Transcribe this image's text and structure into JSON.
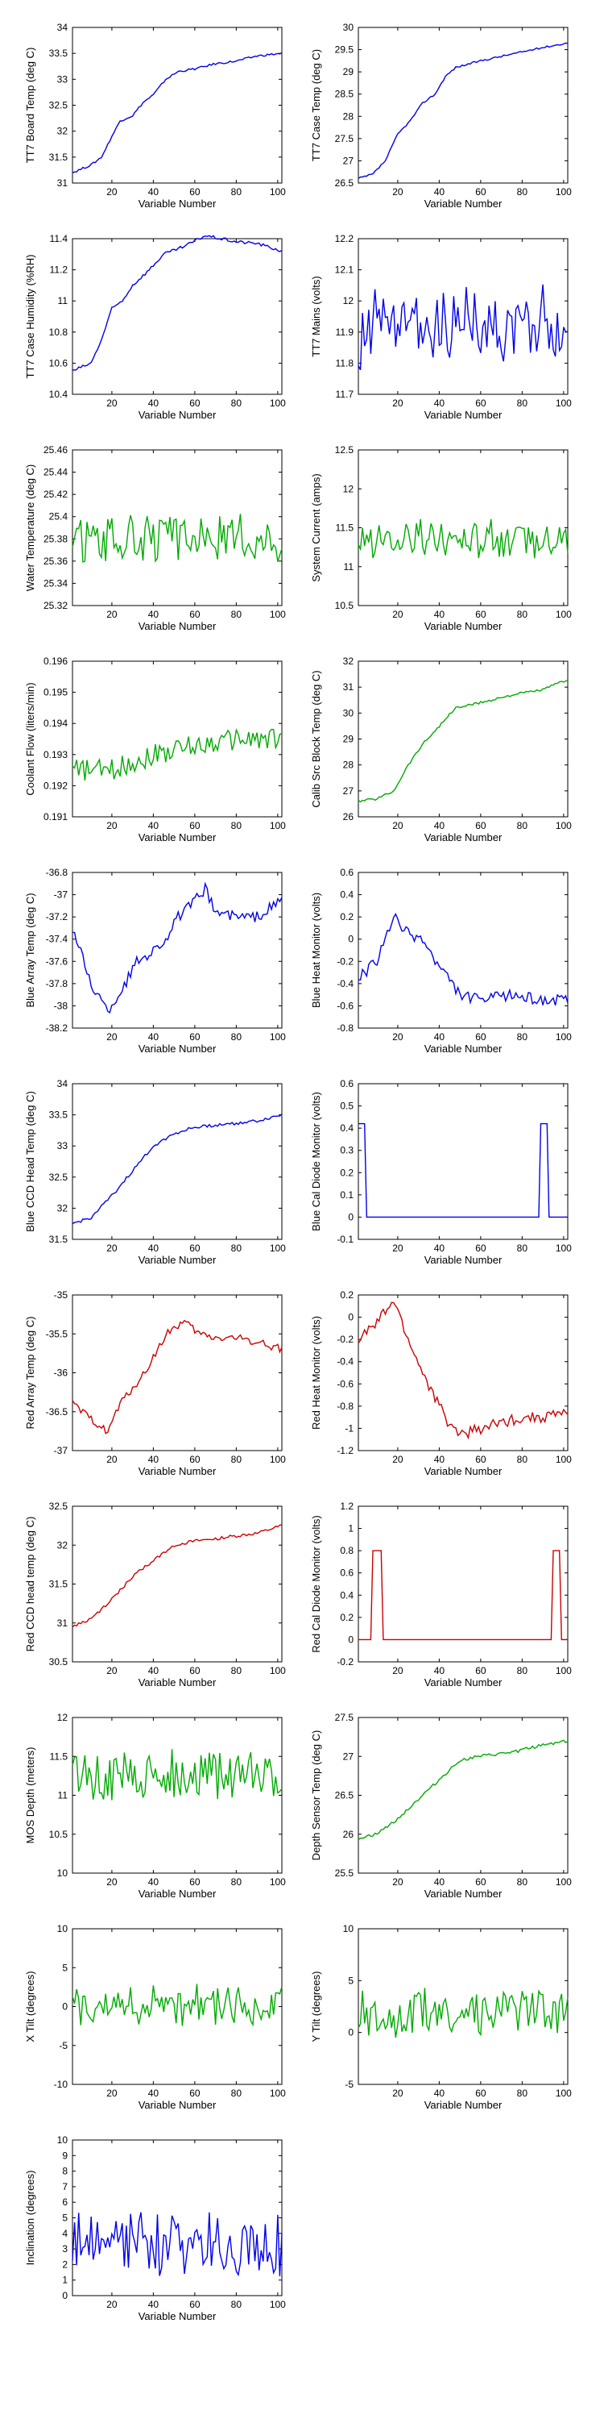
{
  "figure": {
    "xlabel": "Variable Number"
  },
  "chart_data": [
    {
      "type": "line",
      "ylabel": "TT7 Board Temp (deg C)",
      "xlim": [
        1,
        102
      ],
      "ylim": [
        31,
        34
      ],
      "yticks": [
        "31",
        "31.5",
        "32",
        "32.5",
        "33",
        "33.5",
        "34"
      ],
      "xticks": [
        "20",
        "40",
        "60",
        "80",
        "100"
      ],
      "color": "#0000ee",
      "gen": "trend",
      "knots": [
        [
          1,
          31.2
        ],
        [
          10,
          31.35
        ],
        [
          15,
          31.5
        ],
        [
          20,
          31.9
        ],
        [
          24,
          32.2
        ],
        [
          30,
          32.3
        ],
        [
          35,
          32.55
        ],
        [
          40,
          32.7
        ],
        [
          46,
          33.0
        ],
        [
          52,
          33.15
        ],
        [
          60,
          33.2
        ],
        [
          70,
          33.3
        ],
        [
          80,
          33.35
        ],
        [
          90,
          33.45
        ],
        [
          102,
          33.5
        ]
      ],
      "noise": 0.02
    },
    {
      "type": "line",
      "ylabel": "TT7 Case Temp (deg C)",
      "xlim": [
        1,
        102
      ],
      "ylim": [
        26.5,
        30
      ],
      "yticks": [
        "26.5",
        "27",
        "27.5",
        "28",
        "28.5",
        "29",
        "29.5",
        "30"
      ],
      "xticks": [
        "20",
        "40",
        "60",
        "80",
        "100"
      ],
      "color": "#0000ee",
      "gen": "trend",
      "knots": [
        [
          1,
          26.6
        ],
        [
          8,
          26.7
        ],
        [
          14,
          27.0
        ],
        [
          20,
          27.6
        ],
        [
          26,
          27.9
        ],
        [
          32,
          28.3
        ],
        [
          38,
          28.5
        ],
        [
          43,
          28.9
        ],
        [
          48,
          29.1
        ],
        [
          60,
          29.25
        ],
        [
          75,
          29.4
        ],
        [
          90,
          29.55
        ],
        [
          102,
          29.65
        ]
      ],
      "noise": 0.02
    },
    {
      "type": "line",
      "ylabel": "TT7 Case Humidity (%RH)",
      "xlim": [
        1,
        102
      ],
      "ylim": [
        10.4,
        11.4
      ],
      "yticks": [
        "10.4",
        "10.6",
        "10.8",
        "11",
        "11.2",
        "11.4"
      ],
      "xticks": [
        "20",
        "40",
        "60",
        "80",
        "100"
      ],
      "color": "#0000ee",
      "gen": "trend",
      "knots": [
        [
          1,
          10.55
        ],
        [
          10,
          10.6
        ],
        [
          15,
          10.75
        ],
        [
          20,
          10.95
        ],
        [
          25,
          11.0
        ],
        [
          30,
          11.1
        ],
        [
          38,
          11.2
        ],
        [
          45,
          11.3
        ],
        [
          55,
          11.35
        ],
        [
          65,
          11.42
        ],
        [
          80,
          11.38
        ],
        [
          90,
          11.37
        ],
        [
          102,
          11.32
        ]
      ],
      "noise": 0.01
    },
    {
      "type": "line",
      "ylabel": "TT7 Mains  (volts)",
      "xlim": [
        1,
        102
      ],
      "ylim": [
        11.7,
        12.2
      ],
      "yticks": [
        "11.7",
        "11.8",
        "11.9",
        "12",
        "12.1",
        "12.2"
      ],
      "xticks": [
        "20",
        "40",
        "60",
        "80",
        "100"
      ],
      "color": "#0000ee",
      "gen": "noise",
      "mean": 11.92,
      "amp": 0.11,
      "seed": 4
    },
    {
      "type": "line",
      "ylabel": "Water Temperature (deg C)",
      "xlim": [
        1,
        102
      ],
      "ylim": [
        25.32,
        25.46
      ],
      "yticks": [
        "25.32",
        "25.34",
        "25.36",
        "25.38",
        "25.4",
        "25.42",
        "25.44",
        "25.46"
      ],
      "xticks": [
        "20",
        "40",
        "60",
        "80",
        "100"
      ],
      "color": "#00aa00",
      "gen": "noise",
      "mean": 25.38,
      "amp": 0.018,
      "seed": 5
    },
    {
      "type": "line",
      "ylabel": "System Current (amps)",
      "xlim": [
        1,
        102
      ],
      "ylim": [
        10.5,
        12.5
      ],
      "yticks": [
        "10.5",
        "11",
        "11.5",
        "12",
        "12.5"
      ],
      "xticks": [
        "20",
        "40",
        "60",
        "80",
        "100"
      ],
      "color": "#00aa00",
      "gen": "noise",
      "mean": 11.35,
      "amp": 0.22,
      "seed": 6
    },
    {
      "type": "line",
      "ylabel": "Coolant Flow (liters/min)",
      "xlim": [
        1,
        102
      ],
      "ylim": [
        0.191,
        0.196
      ],
      "yticks": [
        "0.191",
        "0.192",
        "0.193",
        "0.194",
        "0.195",
        "0.196"
      ],
      "xticks": [
        "20",
        "40",
        "60",
        "80",
        "100"
      ],
      "color": "#00aa00",
      "gen": "trend",
      "knots": [
        [
          1,
          0.1925
        ],
        [
          20,
          0.1925
        ],
        [
          40,
          0.193
        ],
        [
          60,
          0.1933
        ],
        [
          80,
          0.1935
        ],
        [
          102,
          0.1935
        ]
      ],
      "noise": 0.00035
    },
    {
      "type": "line",
      "ylabel": "Calib Src Block Temp (deg C)",
      "xlim": [
        1,
        102
      ],
      "ylim": [
        26,
        32
      ],
      "yticks": [
        "26",
        "27",
        "28",
        "29",
        "30",
        "31",
        "32"
      ],
      "xticks": [
        "20",
        "40",
        "60",
        "80",
        "100"
      ],
      "color": "#00aa00",
      "gen": "trend",
      "knots": [
        [
          1,
          26.6
        ],
        [
          10,
          26.7
        ],
        [
          18,
          27.0
        ],
        [
          25,
          28.0
        ],
        [
          32,
          28.8
        ],
        [
          40,
          29.5
        ],
        [
          48,
          30.2
        ],
        [
          60,
          30.4
        ],
        [
          75,
          30.7
        ],
        [
          90,
          30.9
        ],
        [
          102,
          31.3
        ]
      ],
      "noise": 0.05
    },
    {
      "type": "line",
      "ylabel": "Blue Array Temp (deg C)",
      "xlim": [
        1,
        102
      ],
      "ylim": [
        -38.2,
        -36.8
      ],
      "yticks": [
        "-38.2",
        "-38",
        "-37.8",
        "-37.6",
        "-37.4",
        "-37.2",
        "-37",
        "-36.8"
      ],
      "xticks": [
        "20",
        "40",
        "60",
        "80",
        "100"
      ],
      "color": "#0000ee",
      "gen": "trend",
      "knots": [
        [
          1,
          -37.3
        ],
        [
          10,
          -37.8
        ],
        [
          18,
          -38.05
        ],
        [
          25,
          -37.85
        ],
        [
          32,
          -37.6
        ],
        [
          40,
          -37.5
        ],
        [
          46,
          -37.4
        ],
        [
          52,
          -37.2
        ],
        [
          58,
          -37.1
        ],
        [
          65,
          -36.95
        ],
        [
          70,
          -37.15
        ],
        [
          80,
          -37.2
        ],
        [
          90,
          -37.2
        ],
        [
          102,
          -37.05
        ]
      ],
      "noise": 0.05
    },
    {
      "type": "line",
      "ylabel": "Blue Heat Monitor (volts)",
      "xlim": [
        1,
        102
      ],
      "ylim": [
        -0.8,
        0.6
      ],
      "yticks": [
        "-0.8",
        "-0.6",
        "-0.4",
        "-0.2",
        "0",
        "0.2",
        "0.4",
        "0.6"
      ],
      "xticks": [
        "20",
        "40",
        "60",
        "80",
        "100"
      ],
      "color": "#0000ee",
      "gen": "trend",
      "knots": [
        [
          1,
          -0.35
        ],
        [
          10,
          -0.2
        ],
        [
          18,
          0.2
        ],
        [
          25,
          0.05
        ],
        [
          32,
          0.0
        ],
        [
          38,
          -0.2
        ],
        [
          44,
          -0.35
        ],
        [
          50,
          -0.5
        ],
        [
          60,
          -0.55
        ],
        [
          75,
          -0.5
        ],
        [
          90,
          -0.55
        ],
        [
          102,
          -0.55
        ]
      ],
      "noise": 0.05
    },
    {
      "type": "line",
      "ylabel": "Blue CCD Head Temp (deg C)",
      "xlim": [
        1,
        102
      ],
      "ylim": [
        31.5,
        34
      ],
      "yticks": [
        "31.5",
        "32",
        "32.5",
        "33",
        "33.5",
        "34"
      ],
      "xticks": [
        "20",
        "40",
        "60",
        "80",
        "100"
      ],
      "color": "#0000ee",
      "gen": "trend",
      "knots": [
        [
          1,
          31.75
        ],
        [
          10,
          31.85
        ],
        [
          20,
          32.2
        ],
        [
          30,
          32.6
        ],
        [
          40,
          33.0
        ],
        [
          50,
          33.2
        ],
        [
          60,
          33.3
        ],
        [
          75,
          33.35
        ],
        [
          90,
          33.4
        ],
        [
          102,
          33.5
        ]
      ],
      "noise": 0.025
    },
    {
      "type": "line",
      "ylabel": "Blue Cal Diode Monitor (volts)",
      "xlim": [
        1,
        102
      ],
      "ylim": [
        -0.1,
        0.6
      ],
      "yticks": [
        "-0.1",
        "0",
        "0.1",
        "0.2",
        "0.3",
        "0.4",
        "0.5",
        "0.6"
      ],
      "xticks": [
        "20",
        "40",
        "60",
        "80",
        "100"
      ],
      "color": "#0000ee",
      "gen": "pulse",
      "base": 0.0,
      "peak": 0.42,
      "pulses": [
        [
          1,
          4
        ],
        [
          89,
          92
        ]
      ]
    },
    {
      "type": "line",
      "ylabel": "Red Array Temp (deg C)",
      "xlim": [
        1,
        102
      ],
      "ylim": [
        -37,
        -35
      ],
      "yticks": [
        "-37",
        "-36.5",
        "-36",
        "-35.5",
        "-35"
      ],
      "xticks": [
        "20",
        "40",
        "60",
        "80",
        "100"
      ],
      "color": "#cc0000",
      "gen": "trend",
      "knots": [
        [
          1,
          -36.4
        ],
        [
          10,
          -36.6
        ],
        [
          18,
          -36.75
        ],
        [
          24,
          -36.4
        ],
        [
          30,
          -36.2
        ],
        [
          36,
          -36.0
        ],
        [
          42,
          -35.7
        ],
        [
          48,
          -35.45
        ],
        [
          55,
          -35.35
        ],
        [
          62,
          -35.5
        ],
        [
          70,
          -35.55
        ],
        [
          80,
          -35.55
        ],
        [
          90,
          -35.6
        ],
        [
          102,
          -35.7
        ]
      ],
      "noise": 0.05
    },
    {
      "type": "line",
      "ylabel": "Red Heat Monitor (volts)",
      "xlim": [
        1,
        102
      ],
      "ylim": [
        -1.2,
        0.2
      ],
      "yticks": [
        "-1.2",
        "-1",
        "-0.8",
        "-0.6",
        "-0.4",
        "-0.2",
        "0",
        "0.2"
      ],
      "xticks": [
        "20",
        "40",
        "60",
        "80",
        "100"
      ],
      "color": "#cc0000",
      "gen": "trend",
      "knots": [
        [
          1,
          -0.2
        ],
        [
          10,
          -0.05
        ],
        [
          18,
          0.15
        ],
        [
          25,
          -0.2
        ],
        [
          32,
          -0.5
        ],
        [
          40,
          -0.8
        ],
        [
          46,
          -1.0
        ],
        [
          52,
          -1.05
        ],
        [
          60,
          -1.0
        ],
        [
          70,
          -0.95
        ],
        [
          80,
          -0.9
        ],
        [
          90,
          -0.9
        ],
        [
          102,
          -0.85
        ]
      ],
      "noise": 0.05
    },
    {
      "type": "line",
      "ylabel": "Red CCD head temp (deg C)",
      "xlim": [
        1,
        102
      ],
      "ylim": [
        30.5,
        32.5
      ],
      "yticks": [
        "30.5",
        "31",
        "31.5",
        "32",
        "32.5"
      ],
      "xticks": [
        "20",
        "40",
        "60",
        "80",
        "100"
      ],
      "color": "#cc0000",
      "gen": "trend",
      "knots": [
        [
          1,
          30.95
        ],
        [
          10,
          31.05
        ],
        [
          20,
          31.3
        ],
        [
          30,
          31.6
        ],
        [
          40,
          31.8
        ],
        [
          50,
          32.0
        ],
        [
          60,
          32.05
        ],
        [
          75,
          32.1
        ],
        [
          90,
          32.15
        ],
        [
          102,
          32.25
        ]
      ],
      "noise": 0.02
    },
    {
      "type": "line",
      "ylabel": "Red Cal Diode Monitor (volts)",
      "xlim": [
        1,
        102
      ],
      "ylim": [
        -0.2,
        1.2
      ],
      "yticks": [
        "-0.2",
        "0",
        "0.2",
        "0.4",
        "0.6",
        "0.8",
        "1",
        "1.2"
      ],
      "xticks": [
        "20",
        "40",
        "60",
        "80",
        "100"
      ],
      "color": "#cc0000",
      "gen": "pulse",
      "base": 0.0,
      "peak": 0.8,
      "pulses": [
        [
          8,
          12
        ],
        [
          95,
          98
        ]
      ]
    },
    {
      "type": "line",
      "ylabel": "MOS Depth  (meters)",
      "xlim": [
        1,
        102
      ],
      "ylim": [
        10,
        12
      ],
      "yticks": [
        "10",
        "10.5",
        "11",
        "11.5",
        "12"
      ],
      "xticks": [
        "20",
        "40",
        "60",
        "80",
        "100"
      ],
      "color": "#00aa00",
      "gen": "noise",
      "mean": 11.25,
      "amp": 0.3,
      "seed": 7
    },
    {
      "type": "line",
      "ylabel": "Depth Sensor Temp (deg C)",
      "xlim": [
        1,
        102
      ],
      "ylim": [
        25.5,
        27.5
      ],
      "yticks": [
        "25.5",
        "26",
        "26.5",
        "27",
        "27.5"
      ],
      "xticks": [
        "20",
        "40",
        "60",
        "80",
        "100"
      ],
      "color": "#00aa00",
      "gen": "trend",
      "knots": [
        [
          1,
          25.95
        ],
        [
          10,
          26.0
        ],
        [
          20,
          26.2
        ],
        [
          30,
          26.45
        ],
        [
          40,
          26.7
        ],
        [
          50,
          26.95
        ],
        [
          60,
          27.0
        ],
        [
          75,
          27.05
        ],
        [
          90,
          27.15
        ],
        [
          102,
          27.2
        ]
      ],
      "noise": 0.02
    },
    {
      "type": "line",
      "ylabel": "X Tilt  (degrees)",
      "xlim": [
        1,
        102
      ],
      "ylim": [
        -10,
        10
      ],
      "yticks": [
        "-10",
        "-5",
        "0",
        "5",
        "10"
      ],
      "xticks": [
        "20",
        "40",
        "60",
        "80",
        "100"
      ],
      "color": "#00aa00",
      "gen": "noise",
      "mean": 0.0,
      "amp": 2.3,
      "seed": 8
    },
    {
      "type": "line",
      "ylabel": "Y Tilt  (degrees)",
      "xlim": [
        1,
        102
      ],
      "ylim": [
        -5,
        10
      ],
      "yticks": [
        "-5",
        "0",
        "5",
        "10"
      ],
      "xticks": [
        "20",
        "40",
        "60",
        "80",
        "100"
      ],
      "color": "#00aa00",
      "gen": "noise",
      "mean": 1.8,
      "amp": 2.0,
      "seed": 9
    },
    {
      "type": "line",
      "ylabel": "Inclination  (degrees)",
      "xlim": [
        1,
        102
      ],
      "ylim": [
        0,
        10
      ],
      "yticks": [
        "0",
        "1",
        "2",
        "3",
        "4",
        "5",
        "6",
        "7",
        "8",
        "9",
        "10"
      ],
      "xticks": [
        "20",
        "40",
        "60",
        "80",
        "100"
      ],
      "color": "#0000ee",
      "gen": "noise",
      "mean": 3.2,
      "amp": 1.7,
      "seed": 10,
      "clip": [
        0.4,
        9
      ]
    }
  ]
}
